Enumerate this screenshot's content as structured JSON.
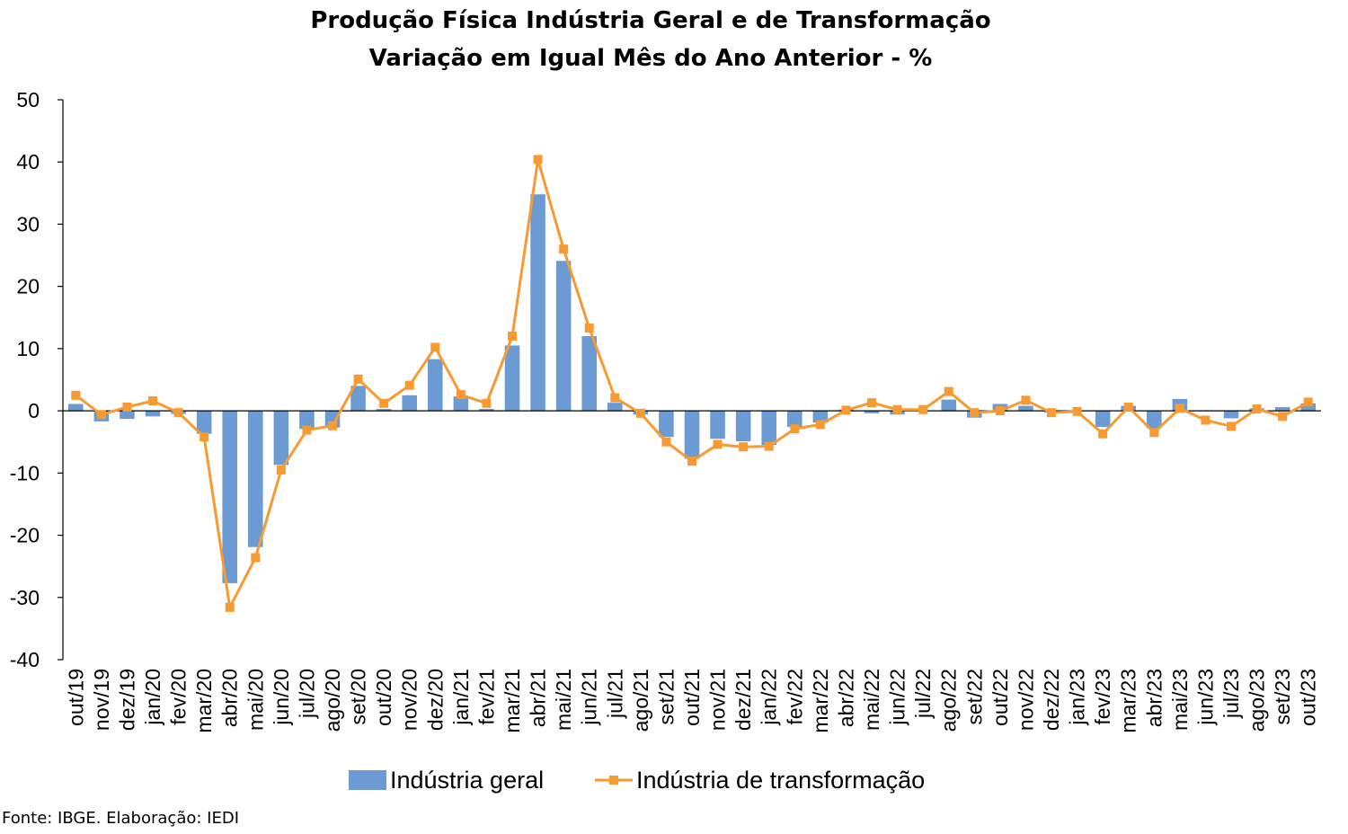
{
  "chart_data": {
    "type": "bar",
    "title": "Produção Física Indústria Geral e de Transformação",
    "subtitle": "Variação em Igual Mês do Ano Anterior - %",
    "categories": [
      "out/19",
      "nov/19",
      "dez/19",
      "jan/20",
      "fev/20",
      "mar/20",
      "abr/20",
      "mai/20",
      "jun/20",
      "jul/20",
      "ago/20",
      "set/20",
      "out/20",
      "nov/20",
      "dez/20",
      "jan/21",
      "fev/21",
      "mar/21",
      "abr/21",
      "mai/21",
      "jun/21",
      "jul/21",
      "ago/21",
      "set/21",
      "out/21",
      "nov/21",
      "dez/21",
      "jan/22",
      "fev/22",
      "mar/22",
      "abr/22",
      "mai/22",
      "jun/22",
      "jul/22",
      "ago/22",
      "set/22",
      "out/22",
      "nov/22",
      "dez/22",
      "jan/23",
      "fev/23",
      "mar/23",
      "abr/23",
      "mai/23",
      "jun/23",
      "jul/23",
      "ago/23",
      "set/23",
      "out/23"
    ],
    "series": [
      {
        "name": "Indústria geral",
        "type": "bar",
        "color": "#6B9BD2",
        "values": [
          1.1,
          -1.7,
          -1.3,
          -0.9,
          -0.5,
          -3.7,
          -27.7,
          -21.9,
          -8.7,
          -2.9,
          -2.7,
          4.0,
          0.3,
          2.5,
          8.3,
          2.3,
          0.3,
          10.5,
          34.8,
          24.1,
          12.0,
          1.3,
          -0.6,
          -4.2,
          -7.7,
          -4.5,
          -4.9,
          -5.5,
          -2.6,
          -1.9,
          0.2,
          -0.4,
          -0.6,
          0.0,
          1.8,
          -1.1,
          1.1,
          0.8,
          -0.3,
          0.0,
          -2.6,
          0.8,
          -2.8,
          1.9,
          0.1,
          -1.2,
          0.4,
          0.6,
          1.2
        ]
      },
      {
        "name": "Indústria de transformação",
        "type": "line",
        "color": "#F79A31",
        "values": [
          2.5,
          -0.6,
          0.6,
          1.6,
          -0.3,
          -4.2,
          -31.6,
          -23.6,
          -9.5,
          -3.1,
          -2.4,
          5.1,
          1.2,
          4.1,
          10.2,
          2.6,
          1.2,
          12.0,
          40.4,
          26.0,
          13.3,
          2.1,
          -0.4,
          -5.0,
          -8.1,
          -5.4,
          -5.8,
          -5.7,
          -2.9,
          -2.2,
          0.1,
          1.3,
          0.2,
          0.2,
          3.1,
          -0.3,
          0.0,
          1.7,
          -0.3,
          -0.1,
          -3.7,
          0.6,
          -3.5,
          0.4,
          -1.5,
          -2.5,
          0.3,
          -0.9,
          1.4
        ]
      }
    ],
    "ylim": [
      -40,
      50
    ],
    "yticks": [
      "50",
      "40",
      "30",
      "20",
      "10",
      "0",
      "-10",
      "-20",
      "-30",
      "-40"
    ],
    "grid": false,
    "legend_position": "bottom"
  },
  "source_note": "Fonte: IBGE. Elaboração: IEDI"
}
